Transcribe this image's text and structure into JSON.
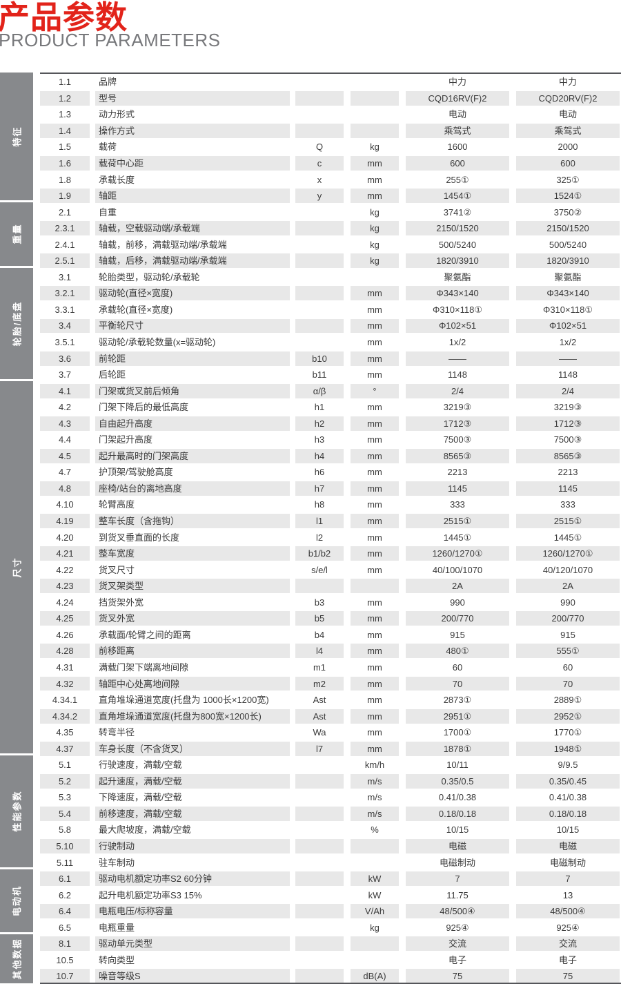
{
  "header": {
    "title_zh": "产品参数",
    "title_en": "PRODUCT PARAMETERS"
  },
  "colors": {
    "accent_red": "#e2231a",
    "subtitle_gray": "#77787b",
    "sidebar_gray": "#87898c",
    "stripe_gray": "#e8e8e8",
    "rule_gray": "#55565a",
    "text_dark": "#3a3a3a"
  },
  "table": {
    "models": [
      "CQD16RV(F)2",
      "CQD20RV(F)2"
    ],
    "sections": [
      {
        "name": "特征",
        "rows": [
          {
            "no": "1.1",
            "label": "品牌",
            "symbol": "",
            "unit": "",
            "v1": "中力",
            "v2": "中力"
          },
          {
            "no": "1.2",
            "label": "型号",
            "symbol": "",
            "unit": "",
            "v1": "CQD16RV(F)2",
            "v2": "CQD20RV(F)2"
          },
          {
            "no": "1.3",
            "label": "动力形式",
            "symbol": "",
            "unit": "",
            "v1": "电动",
            "v2": "电动"
          },
          {
            "no": "1.4",
            "label": "操作方式",
            "symbol": "",
            "unit": "",
            "v1": "乘驾式",
            "v2": "乘驾式"
          },
          {
            "no": "1.5",
            "label": "载荷",
            "symbol": "Q",
            "unit": "kg",
            "v1": "1600",
            "v2": "2000"
          },
          {
            "no": "1.6",
            "label": "载荷中心距",
            "symbol": "c",
            "unit": "mm",
            "v1": "600",
            "v2": "600"
          },
          {
            "no": "1.8",
            "label": "承载长度",
            "symbol": "x",
            "unit": "mm",
            "v1": "255①",
            "v2": "325①"
          },
          {
            "no": "1.9",
            "label": "轴距",
            "symbol": "y",
            "unit": "mm",
            "v1": "1454①",
            "v2": "1524①"
          }
        ]
      },
      {
        "name": "重量",
        "rows": [
          {
            "no": "2.1",
            "label": "自重",
            "symbol": "",
            "unit": "kg",
            "v1": "3741②",
            "v2": "3750②"
          },
          {
            "no": "2.3.1",
            "label": "轴载，空载驱动端/承载端",
            "symbol": "",
            "unit": "kg",
            "v1": "2150/1520",
            "v2": "2150/1520"
          },
          {
            "no": "2.4.1",
            "label": "轴载，前移，满载驱动端/承载端",
            "symbol": "",
            "unit": "kg",
            "v1": "500/5240",
            "v2": "500/5240"
          },
          {
            "no": "2.5.1",
            "label": "轴载，后移，满载驱动端/承载端",
            "symbol": "",
            "unit": "kg",
            "v1": "1820/3910",
            "v2": "1820/3910"
          }
        ]
      },
      {
        "name": "轮胎/底盘",
        "rows": [
          {
            "no": "3.1",
            "label": "轮胎类型，驱动轮/承载轮",
            "symbol": "",
            "unit": "",
            "v1": "聚氨酯",
            "v2": "聚氨酯"
          },
          {
            "no": "3.2.1",
            "label": "驱动轮(直径×宽度)",
            "symbol": "",
            "unit": "mm",
            "v1": "Φ343×140",
            "v2": "Φ343×140"
          },
          {
            "no": "3.3.1",
            "label": "承载轮(直径×宽度)",
            "symbol": "",
            "unit": "mm",
            "v1": "Φ310×118①",
            "v2": "Φ310×118①"
          },
          {
            "no": "3.4",
            "label": "平衡轮尺寸",
            "symbol": "",
            "unit": "mm",
            "v1": "Φ102×51",
            "v2": "Φ102×51"
          },
          {
            "no": "3.5.1",
            "label": "驱动轮/承载轮数量(x=驱动轮)",
            "symbol": "",
            "unit": "mm",
            "v1": "1x/2",
            "v2": "1x/2"
          },
          {
            "no": "3.6",
            "label": "前轮距",
            "symbol": "b10",
            "unit": "mm",
            "v1": "——",
            "v2": "——"
          },
          {
            "no": "3.7",
            "label": "后轮距",
            "symbol": "b11",
            "unit": "mm",
            "v1": "1148",
            "v2": "1148"
          }
        ]
      },
      {
        "name": "尺寸",
        "rows": [
          {
            "no": "4.1",
            "label": "门架或货叉前后倾角",
            "symbol": "α/β",
            "unit": "°",
            "v1": "2/4",
            "v2": "2/4"
          },
          {
            "no": "4.2",
            "label": "门架下降后的最低高度",
            "symbol": "h1",
            "unit": "mm",
            "v1": "3219③",
            "v2": "3219③"
          },
          {
            "no": "4.3",
            "label": "自由起升高度",
            "symbol": "h2",
            "unit": "mm",
            "v1": "1712③",
            "v2": "1712③"
          },
          {
            "no": "4.4",
            "label": "门架起升高度",
            "symbol": "h3",
            "unit": "mm",
            "v1": "7500③",
            "v2": "7500③"
          },
          {
            "no": "4.5",
            "label": "起升最高时的门架高度",
            "symbol": "h4",
            "unit": "mm",
            "v1": "8565③",
            "v2": "8565③"
          },
          {
            "no": "4.7",
            "label": "护顶架/驾驶舱高度",
            "symbol": "h6",
            "unit": "mm",
            "v1": "2213",
            "v2": "2213"
          },
          {
            "no": "4.8",
            "label": "座椅/站台的离地高度",
            "symbol": "h7",
            "unit": "mm",
            "v1": "1145",
            "v2": "1145"
          },
          {
            "no": "4.10",
            "label": "轮臂高度",
            "symbol": "h8",
            "unit": "mm",
            "v1": "333",
            "v2": "333"
          },
          {
            "no": "4.19",
            "label": "整车长度（含拖钩）",
            "symbol": "l1",
            "unit": "mm",
            "v1": "2515①",
            "v2": "2515①"
          },
          {
            "no": "4.20",
            "label": "到货叉垂直面的长度",
            "symbol": "l2",
            "unit": "mm",
            "v1": "1445①",
            "v2": "1445①"
          },
          {
            "no": "4.21",
            "label": "整车宽度",
            "symbol": "b1/b2",
            "unit": "mm",
            "v1": "1260/1270①",
            "v2": "1260/1270①"
          },
          {
            "no": "4.22",
            "label": "货叉尺寸",
            "symbol": "s/e/l",
            "unit": "mm",
            "v1": "40/100/1070",
            "v2": "40/120/1070"
          },
          {
            "no": "4.23",
            "label": "货叉架类型",
            "symbol": "",
            "unit": "",
            "v1": "2A",
            "v2": "2A"
          },
          {
            "no": "4.24",
            "label": "挡货架外宽",
            "symbol": "b3",
            "unit": "mm",
            "v1": "990",
            "v2": "990"
          },
          {
            "no": "4.25",
            "label": "货叉外宽",
            "symbol": "b5",
            "unit": "mm",
            "v1": "200/770",
            "v2": "200/770"
          },
          {
            "no": "4.26",
            "label": "承载面/轮臂之间的距离",
            "symbol": "b4",
            "unit": "mm",
            "v1": "915",
            "v2": "915"
          },
          {
            "no": "4.28",
            "label": "前移距离",
            "symbol": "l4",
            "unit": "mm",
            "v1": "480①",
            "v2": "555①"
          },
          {
            "no": "4.31",
            "label": "满载门架下端离地间隙",
            "symbol": "m1",
            "unit": "mm",
            "v1": "60",
            "v2": "60"
          },
          {
            "no": "4.32",
            "label": "轴距中心处离地间隙",
            "symbol": "m2",
            "unit": "mm",
            "v1": "70",
            "v2": "70"
          },
          {
            "no": "4.34.1",
            "label": "直角堆垛通道宽度(托盘为 1000长×1200宽)",
            "symbol": "Ast",
            "unit": "mm",
            "v1": "2873①",
            "v2": "2889①"
          },
          {
            "no": "4.34.2",
            "label": "直角堆垛通道宽度(托盘为800宽×1200长)",
            "symbol": "Ast",
            "unit": "mm",
            "v1": "2951①",
            "v2": "2952①"
          },
          {
            "no": "4.35",
            "label": "转弯半径",
            "symbol": "Wa",
            "unit": "mm",
            "v1": "1700①",
            "v2": "1770①"
          },
          {
            "no": "4.37",
            "label": "车身长度（不含货叉）",
            "symbol": "l7",
            "unit": "mm",
            "v1": "1878①",
            "v2": "1948①"
          }
        ]
      },
      {
        "name": "性能参数",
        "rows": [
          {
            "no": "5.1",
            "label": "行驶速度，满载/空载",
            "symbol": "",
            "unit": "km/h",
            "v1": "10/11",
            "v2": "9/9.5"
          },
          {
            "no": "5.2",
            "label": "起升速度，满载/空载",
            "symbol": "",
            "unit": "m/s",
            "v1": "0.35/0.5",
            "v2": "0.35/0.45"
          },
          {
            "no": "5.3",
            "label": "下降速度，满载/空载",
            "symbol": "",
            "unit": "m/s",
            "v1": "0.41/0.38",
            "v2": "0.41/0.38"
          },
          {
            "no": "5.4",
            "label": "前移速度，满载/空载",
            "symbol": "",
            "unit": "m/s",
            "v1": "0.18/0.18",
            "v2": "0.18/0.18"
          },
          {
            "no": "5.8",
            "label": "最大爬坡度，满载/空载",
            "symbol": "",
            "unit": "%",
            "v1": "10/15",
            "v2": "10/15"
          },
          {
            "no": "5.10",
            "label": "行驶制动",
            "symbol": "",
            "unit": "",
            "v1": "电磁",
            "v2": "电磁"
          },
          {
            "no": "5.11",
            "label": "驻车制动",
            "symbol": "",
            "unit": "",
            "v1": "电磁制动",
            "v2": "电磁制动"
          }
        ]
      },
      {
        "name": "电动机",
        "rows": [
          {
            "no": "6.1",
            "label": "驱动电机额定功率S2 60分钟",
            "symbol": "",
            "unit": "kW",
            "v1": "7",
            "v2": "7"
          },
          {
            "no": "6.2",
            "label": "起升电机额定功率S3 15%",
            "symbol": "",
            "unit": "kW",
            "v1": "11.75",
            "v2": "13"
          },
          {
            "no": "6.4",
            "label": "电瓶电压/标称容量",
            "symbol": "",
            "unit": "V/Ah",
            "v1": "48/500④",
            "v2": "48/500④"
          },
          {
            "no": "6.5",
            "label": "电瓶重量",
            "symbol": "",
            "unit": "kg",
            "v1": "925④",
            "v2": "925④"
          }
        ]
      },
      {
        "name": "其他数据",
        "rows": [
          {
            "no": "8.1",
            "label": "驱动单元类型",
            "symbol": "",
            "unit": "",
            "v1": "交流",
            "v2": "交流"
          },
          {
            "no": "10.5",
            "label": "转向类型",
            "symbol": "",
            "unit": "",
            "v1": "电子",
            "v2": "电子"
          },
          {
            "no": "10.7",
            "label": "噪音等级S",
            "symbol": "",
            "unit": "dB(A)",
            "v1": "75",
            "v2": "75"
          }
        ]
      }
    ]
  }
}
